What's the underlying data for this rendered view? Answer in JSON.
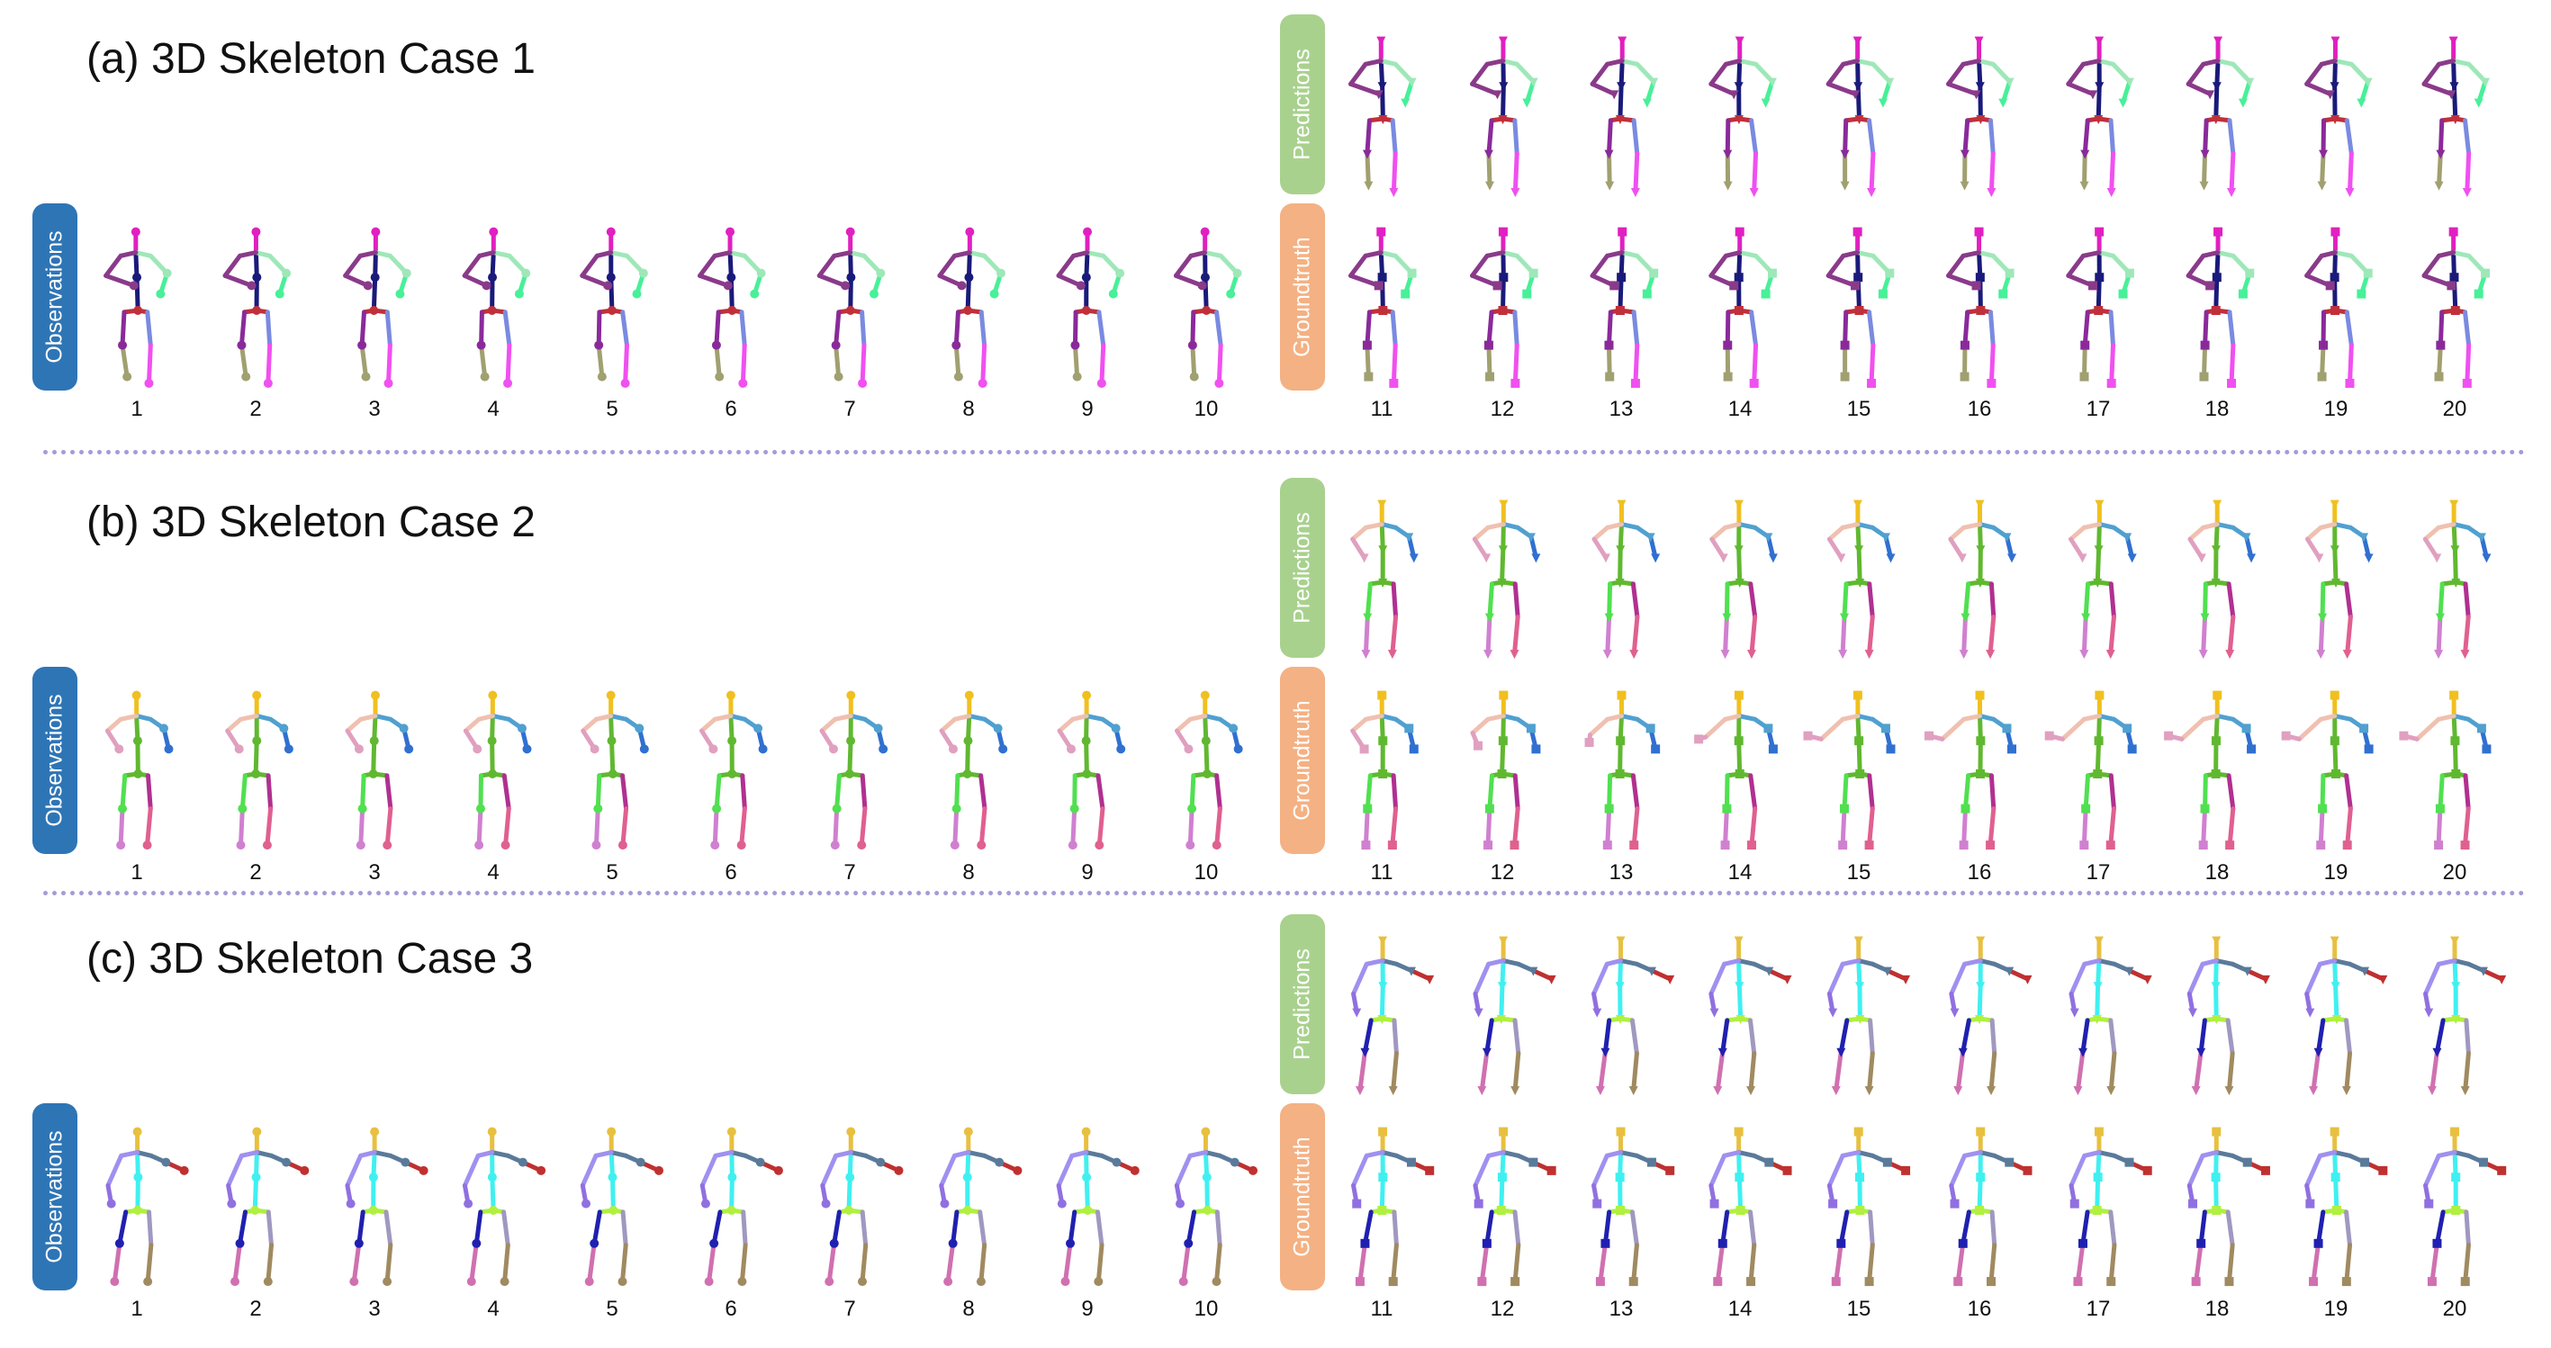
{
  "labels": {
    "observations": "Observations",
    "predictions": "Predictions",
    "groundtruth": "Groundtruth"
  },
  "cases": [
    {
      "title": "(a) 3D Skeleton Case 1",
      "palette": {
        "head": "#e020c0",
        "spine": "#1a1a7a",
        "hip": "#c0303a",
        "leftArm": "#9ee8b8",
        "leftHand": "#48f098",
        "rightArm": "#8a3a8a",
        "rightHand": "#8a3a8a",
        "leftLeg": "#7a8ae0",
        "leftFoot": "#f050f0",
        "rightLeg": "#8a2a9a",
        "rightFoot": "#a0a070"
      }
    },
    {
      "title": "(b) 3D Skeleton Case 2",
      "palette": {
        "head": "#f0c020",
        "spine": "#60b830",
        "hip": "#60b830",
        "leftArm": "#50a0d0",
        "leftHand": "#3070d0",
        "rightArm": "#f0c0b0",
        "rightHand": "#e0a0c0",
        "leftLeg": "#b03090",
        "leftFoot": "#e06090",
        "rightLeg": "#50e050",
        "rightFoot": "#d080d0"
      }
    },
    {
      "title": "(c) 3D Skeleton Case 3",
      "palette": {
        "head": "#e8c040",
        "spine": "#40f0f0",
        "hip": "#b0f040",
        "leftArm": "#5a7a9a",
        "leftHand": "#c03030",
        "rightArm": "#a090f0",
        "rightHand": "#9070e0",
        "leftLeg": "#a098c0",
        "leftFoot": "#a08a60",
        "rightLeg": "#2020b0",
        "rightFoot": "#d070b0"
      }
    }
  ],
  "observation_frames": [
    "1",
    "2",
    "3",
    "4",
    "5",
    "6",
    "7",
    "8",
    "9",
    "10"
  ],
  "future_frames": [
    "11",
    "12",
    "13",
    "14",
    "15",
    "16",
    "17",
    "18",
    "19",
    "20"
  ]
}
